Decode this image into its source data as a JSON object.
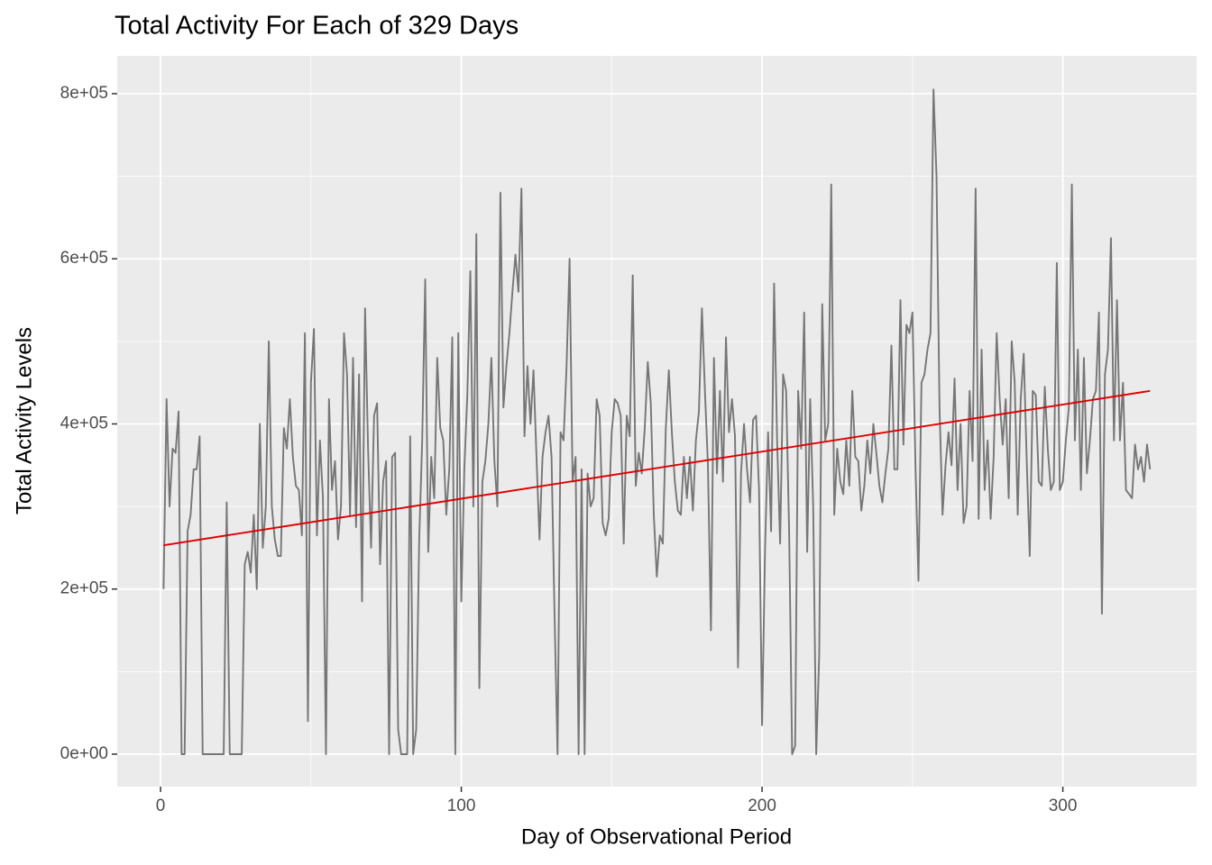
{
  "chart_data": {
    "type": "line",
    "title": "Total Activity For Each of 329 Days",
    "xlabel": "Day of Observational Period",
    "ylabel": "Total Activity Levels",
    "xlim": [
      -14.4,
      344.5
    ],
    "ylim": [
      -39300,
      845800
    ],
    "xticks": [
      0,
      100,
      200,
      300
    ],
    "yticks": [
      {
        "value": 0,
        "label": "0e+00"
      },
      {
        "value": 200000,
        "label": "2e+05"
      },
      {
        "value": 400000,
        "label": "4e+05"
      },
      {
        "value": 600000,
        "label": "6e+05"
      },
      {
        "value": 800000,
        "label": "8e+05"
      }
    ],
    "x_minor_ticks": [
      50,
      150,
      250
    ],
    "y_minor_ticks": [
      100000,
      300000,
      500000,
      700000
    ],
    "grid": true,
    "panel_color": "#ebebeb",
    "series": [
      {
        "color": "#767676",
        "x": [
          1,
          2,
          3,
          4,
          5,
          6,
          7,
          8,
          9,
          10,
          11,
          12,
          13,
          14,
          15,
          16,
          17,
          18,
          19,
          20,
          21,
          22,
          23,
          24,
          25,
          26,
          27,
          28,
          29,
          30,
          31,
          32,
          33,
          34,
          35,
          36,
          37,
          38,
          39,
          40,
          41,
          42,
          43,
          44,
          45,
          46,
          47,
          48,
          49,
          50,
          51,
          52,
          53,
          54,
          55,
          56,
          57,
          58,
          59,
          60,
          61,
          62,
          63,
          64,
          65,
          66,
          67,
          68,
          69,
          70,
          71,
          72,
          73,
          74,
          75,
          76,
          77,
          78,
          79,
          80,
          81,
          82,
          83,
          84,
          85,
          86,
          87,
          88,
          89,
          90,
          91,
          92,
          93,
          94,
          95,
          96,
          97,
          98,
          99,
          100,
          101,
          102,
          103,
          104,
          105,
          106,
          107,
          108,
          109,
          110,
          111,
          112,
          113,
          114,
          115,
          116,
          117,
          118,
          119,
          120,
          121,
          122,
          123,
          124,
          125,
          126,
          127,
          128,
          129,
          130,
          131,
          132,
          133,
          134,
          135,
          136,
          137,
          138,
          139,
          140,
          141,
          142,
          143,
          144,
          145,
          146,
          147,
          148,
          149,
          150,
          151,
          152,
          153,
          154,
          155,
          156,
          157,
          158,
          159,
          160,
          161,
          162,
          163,
          164,
          165,
          166,
          167,
          168,
          169,
          170,
          171,
          172,
          173,
          174,
          175,
          176,
          177,
          178,
          179,
          180,
          181,
          182,
          183,
          184,
          185,
          186,
          187,
          188,
          189,
          190,
          191,
          192,
          193,
          194,
          195,
          196,
          197,
          198,
          199,
          200,
          201,
          202,
          203,
          204,
          205,
          206,
          207,
          208,
          209,
          210,
          211,
          212,
          213,
          214,
          215,
          216,
          217,
          218,
          219,
          220,
          221,
          222,
          223,
          224,
          225,
          226,
          227,
          228,
          229,
          230,
          231,
          232,
          233,
          234,
          235,
          236,
          237,
          238,
          239,
          240,
          241,
          242,
          243,
          244,
          245,
          246,
          247,
          248,
          249,
          250,
          251,
          252,
          253,
          254,
          255,
          256,
          257,
          258,
          259,
          260,
          261,
          262,
          263,
          264,
          265,
          266,
          267,
          268,
          269,
          270,
          271,
          272,
          273,
          274,
          275,
          276,
          277,
          278,
          279,
          280,
          281,
          282,
          283,
          284,
          285,
          286,
          287,
          288,
          289,
          290,
          291,
          292,
          293,
          294,
          295,
          296,
          297,
          298,
          299,
          300,
          301,
          302,
          303,
          304,
          305,
          306,
          307,
          308,
          309,
          310,
          311,
          312,
          313,
          314,
          315,
          316,
          317,
          318,
          319,
          320,
          321,
          322,
          323,
          324,
          325,
          326,
          327,
          328,
          329
        ],
        "values": [
          200000,
          430000,
          300000,
          370000,
          365000,
          415000,
          0,
          0,
          270000,
          290000,
          345000,
          345000,
          385000,
          0,
          0,
          0,
          0,
          0,
          0,
          0,
          0,
          305000,
          0,
          0,
          0,
          0,
          0,
          230000,
          245000,
          220000,
          290000,
          200000,
          400000,
          250000,
          300000,
          500000,
          300000,
          260000,
          240000,
          240000,
          395000,
          370000,
          430000,
          360000,
          325000,
          320000,
          265000,
          510000,
          40000,
          450000,
          515000,
          265000,
          380000,
          310000,
          0,
          430000,
          320000,
          355000,
          260000,
          300000,
          510000,
          460000,
          290000,
          480000,
          275000,
          460000,
          185000,
          540000,
          370000,
          250000,
          410000,
          425000,
          230000,
          330000,
          355000,
          0,
          360000,
          365000,
          30000,
          0,
          0,
          0,
          385000,
          0,
          30000,
          260000,
          380000,
          575000,
          245000,
          360000,
          310000,
          480000,
          395000,
          380000,
          290000,
          345000,
          505000,
          0,
          510000,
          185000,
          345000,
          435000,
          585000,
          300000,
          630000,
          80000,
          330000,
          355000,
          400000,
          480000,
          355000,
          300000,
          680000,
          420000,
          470000,
          510000,
          560000,
          605000,
          560000,
          685000,
          385000,
          470000,
          400000,
          465000,
          360000,
          260000,
          360000,
          390000,
          410000,
          360000,
          170000,
          0,
          390000,
          380000,
          470000,
          600000,
          330000,
          360000,
          0,
          345000,
          0,
          340000,
          300000,
          310000,
          430000,
          410000,
          280000,
          265000,
          285000,
          390000,
          430000,
          425000,
          410000,
          255000,
          410000,
          385000,
          580000,
          325000,
          365000,
          340000,
          395000,
          475000,
          425000,
          290000,
          215000,
          265000,
          255000,
          395000,
          465000,
          390000,
          330000,
          295000,
          290000,
          360000,
          310000,
          360000,
          295000,
          380000,
          415000,
          540000,
          440000,
          350000,
          150000,
          480000,
          340000,
          440000,
          330000,
          505000,
          390000,
          430000,
          385000,
          105000,
          340000,
          400000,
          345000,
          305000,
          405000,
          410000,
          320000,
          35000,
          250000,
          390000,
          270000,
          570000,
          380000,
          255000,
          460000,
          440000,
          270000,
          0,
          10000,
          440000,
          370000,
          535000,
          245000,
          430000,
          300000,
          0,
          120000,
          545000,
          380000,
          400000,
          690000,
          290000,
          370000,
          330000,
          315000,
          380000,
          325000,
          440000,
          360000,
          355000,
          295000,
          325000,
          380000,
          340000,
          400000,
          365000,
          325000,
          305000,
          340000,
          370000,
          495000,
          345000,
          345000,
          550000,
          375000,
          520000,
          510000,
          535000,
          350000,
          210000,
          450000,
          460000,
          490000,
          510000,
          805000,
          700000,
          420000,
          290000,
          350000,
          390000,
          350000,
          455000,
          320000,
          400000,
          280000,
          300000,
          440000,
          355000,
          685000,
          285000,
          490000,
          320000,
          380000,
          285000,
          360000,
          510000,
          430000,
          375000,
          430000,
          310000,
          500000,
          450000,
          290000,
          430000,
          485000,
          355000,
          240000,
          440000,
          435000,
          330000,
          325000,
          445000,
          370000,
          320000,
          330000,
          595000,
          320000,
          330000,
          380000,
          420000,
          690000,
          380000,
          490000,
          320000,
          480000,
          340000,
          380000,
          430000,
          440000,
          535000,
          170000,
          460000,
          490000,
          625000,
          380000,
          550000,
          380000,
          450000,
          320000,
          315000,
          310000,
          375000,
          345000,
          360000,
          330000,
          375000,
          345000
        ]
      },
      {
        "color": "#e00000",
        "x": [
          1,
          329
        ],
        "values": [
          253000,
          440000
        ]
      }
    ]
  }
}
